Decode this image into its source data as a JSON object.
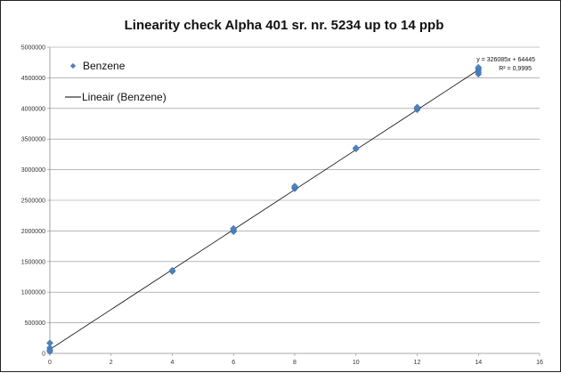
{
  "chart_data": {
    "type": "scatter",
    "title": "Linearity check  Alpha 401 sr. nr. 5234 up to 14 ppb",
    "xlabel": "",
    "ylabel": "",
    "xlim": [
      0,
      16
    ],
    "ylim": [
      0,
      5000000
    ],
    "x_ticks": [
      0,
      2,
      4,
      6,
      8,
      10,
      12,
      14,
      16
    ],
    "y_ticks": [
      0,
      500000,
      1000000,
      1500000,
      2000000,
      2500000,
      3000000,
      3500000,
      4000000,
      4500000,
      5000000
    ],
    "grid": true,
    "legend_position": "top-left",
    "series": [
      {
        "name": "Benzene",
        "color": "#4f81bd",
        "marker": "diamond",
        "points": [
          [
            0,
            170000
          ],
          [
            0,
            90000
          ],
          [
            0,
            55000
          ],
          [
            0,
            30000
          ],
          [
            4,
            1340000
          ],
          [
            4,
            1355000
          ],
          [
            6,
            1990000
          ],
          [
            6,
            2020000
          ],
          [
            6,
            2040000
          ],
          [
            8,
            2690000
          ],
          [
            8,
            2710000
          ],
          [
            8,
            2730000
          ],
          [
            10,
            3340000
          ],
          [
            10,
            3355000
          ],
          [
            12,
            3980000
          ],
          [
            12,
            4000000
          ],
          [
            12,
            4020000
          ],
          [
            14,
            4560000
          ],
          [
            14,
            4590000
          ],
          [
            14,
            4620000
          ],
          [
            14,
            4650000
          ],
          [
            14,
            4670000
          ]
        ]
      }
    ],
    "trendline": {
      "name": "Lineair (Benzene)",
      "slope": 326085,
      "intercept": 64445,
      "x_range": [
        0,
        14
      ],
      "color": "#000000",
      "equation": "y = 326085x + 64445",
      "r_squared": "R² = 0,9995"
    }
  }
}
